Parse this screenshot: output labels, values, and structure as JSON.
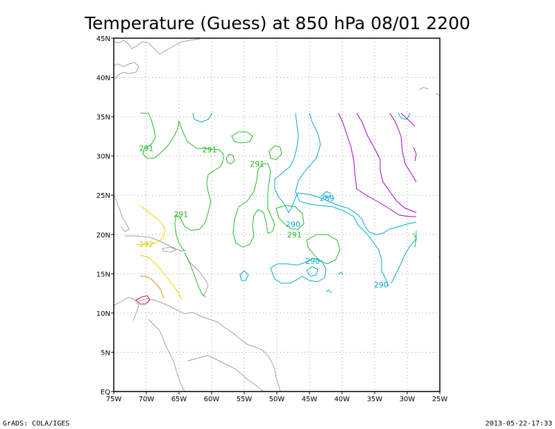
{
  "chart_data": {
    "type": "contour",
    "title": "Temperature (Guess) at 850 hPa 08/01 2200",
    "x_ticks": [
      "75W",
      "70W",
      "65W",
      "60W",
      "55W",
      "50W",
      "45W",
      "40W",
      "35W",
      "30W",
      "25W"
    ],
    "y_ticks": [
      "EQ",
      "5N",
      "10N",
      "15N",
      "20N",
      "25N",
      "30N",
      "35N",
      "40N",
      "45N"
    ],
    "xlim": [
      -75,
      -25
    ],
    "ylim": [
      0,
      45
    ],
    "grid": true,
    "contour_labels": [
      {
        "text": "291",
        "lon": -70.0,
        "lat": 31.0,
        "color": "#22bb22"
      },
      {
        "text": "291",
        "lon": -60.3,
        "lat": 30.8,
        "color": "#22bb22"
      },
      {
        "text": "291",
        "lon": -53.0,
        "lat": 29.0,
        "color": "#22bb22"
      },
      {
        "text": "291",
        "lon": -64.7,
        "lat": 22.6,
        "color": "#22bb22"
      },
      {
        "text": "291",
        "lon": -47.3,
        "lat": 20.0,
        "color": "#22bb22"
      },
      {
        "text": "292",
        "lon": -70.0,
        "lat": 18.8,
        "color": "#cccc00"
      },
      {
        "text": "289",
        "lon": -42.3,
        "lat": 24.6,
        "color": "#00a9c8"
      },
      {
        "text": "290",
        "lon": -47.5,
        "lat": 21.3,
        "color": "#00a9c8"
      },
      {
        "text": "290",
        "lon": -44.5,
        "lat": 16.6,
        "color": "#00a9c8"
      },
      {
        "text": "290",
        "lon": -34.0,
        "lat": 13.6,
        "color": "#00a9c8"
      }
    ],
    "colors": {
      "green_291": "#22bb22",
      "cyan_289_290": "#00a9c8",
      "purple": "#a000c8",
      "yellow": "#e6d200",
      "orange": "#e68c00",
      "red": "#e6003c",
      "coast": "#a0a0a0"
    }
  },
  "footer": {
    "left": "GrADS: COLA/IGES",
    "right": "2013-05-22-17:33"
  }
}
